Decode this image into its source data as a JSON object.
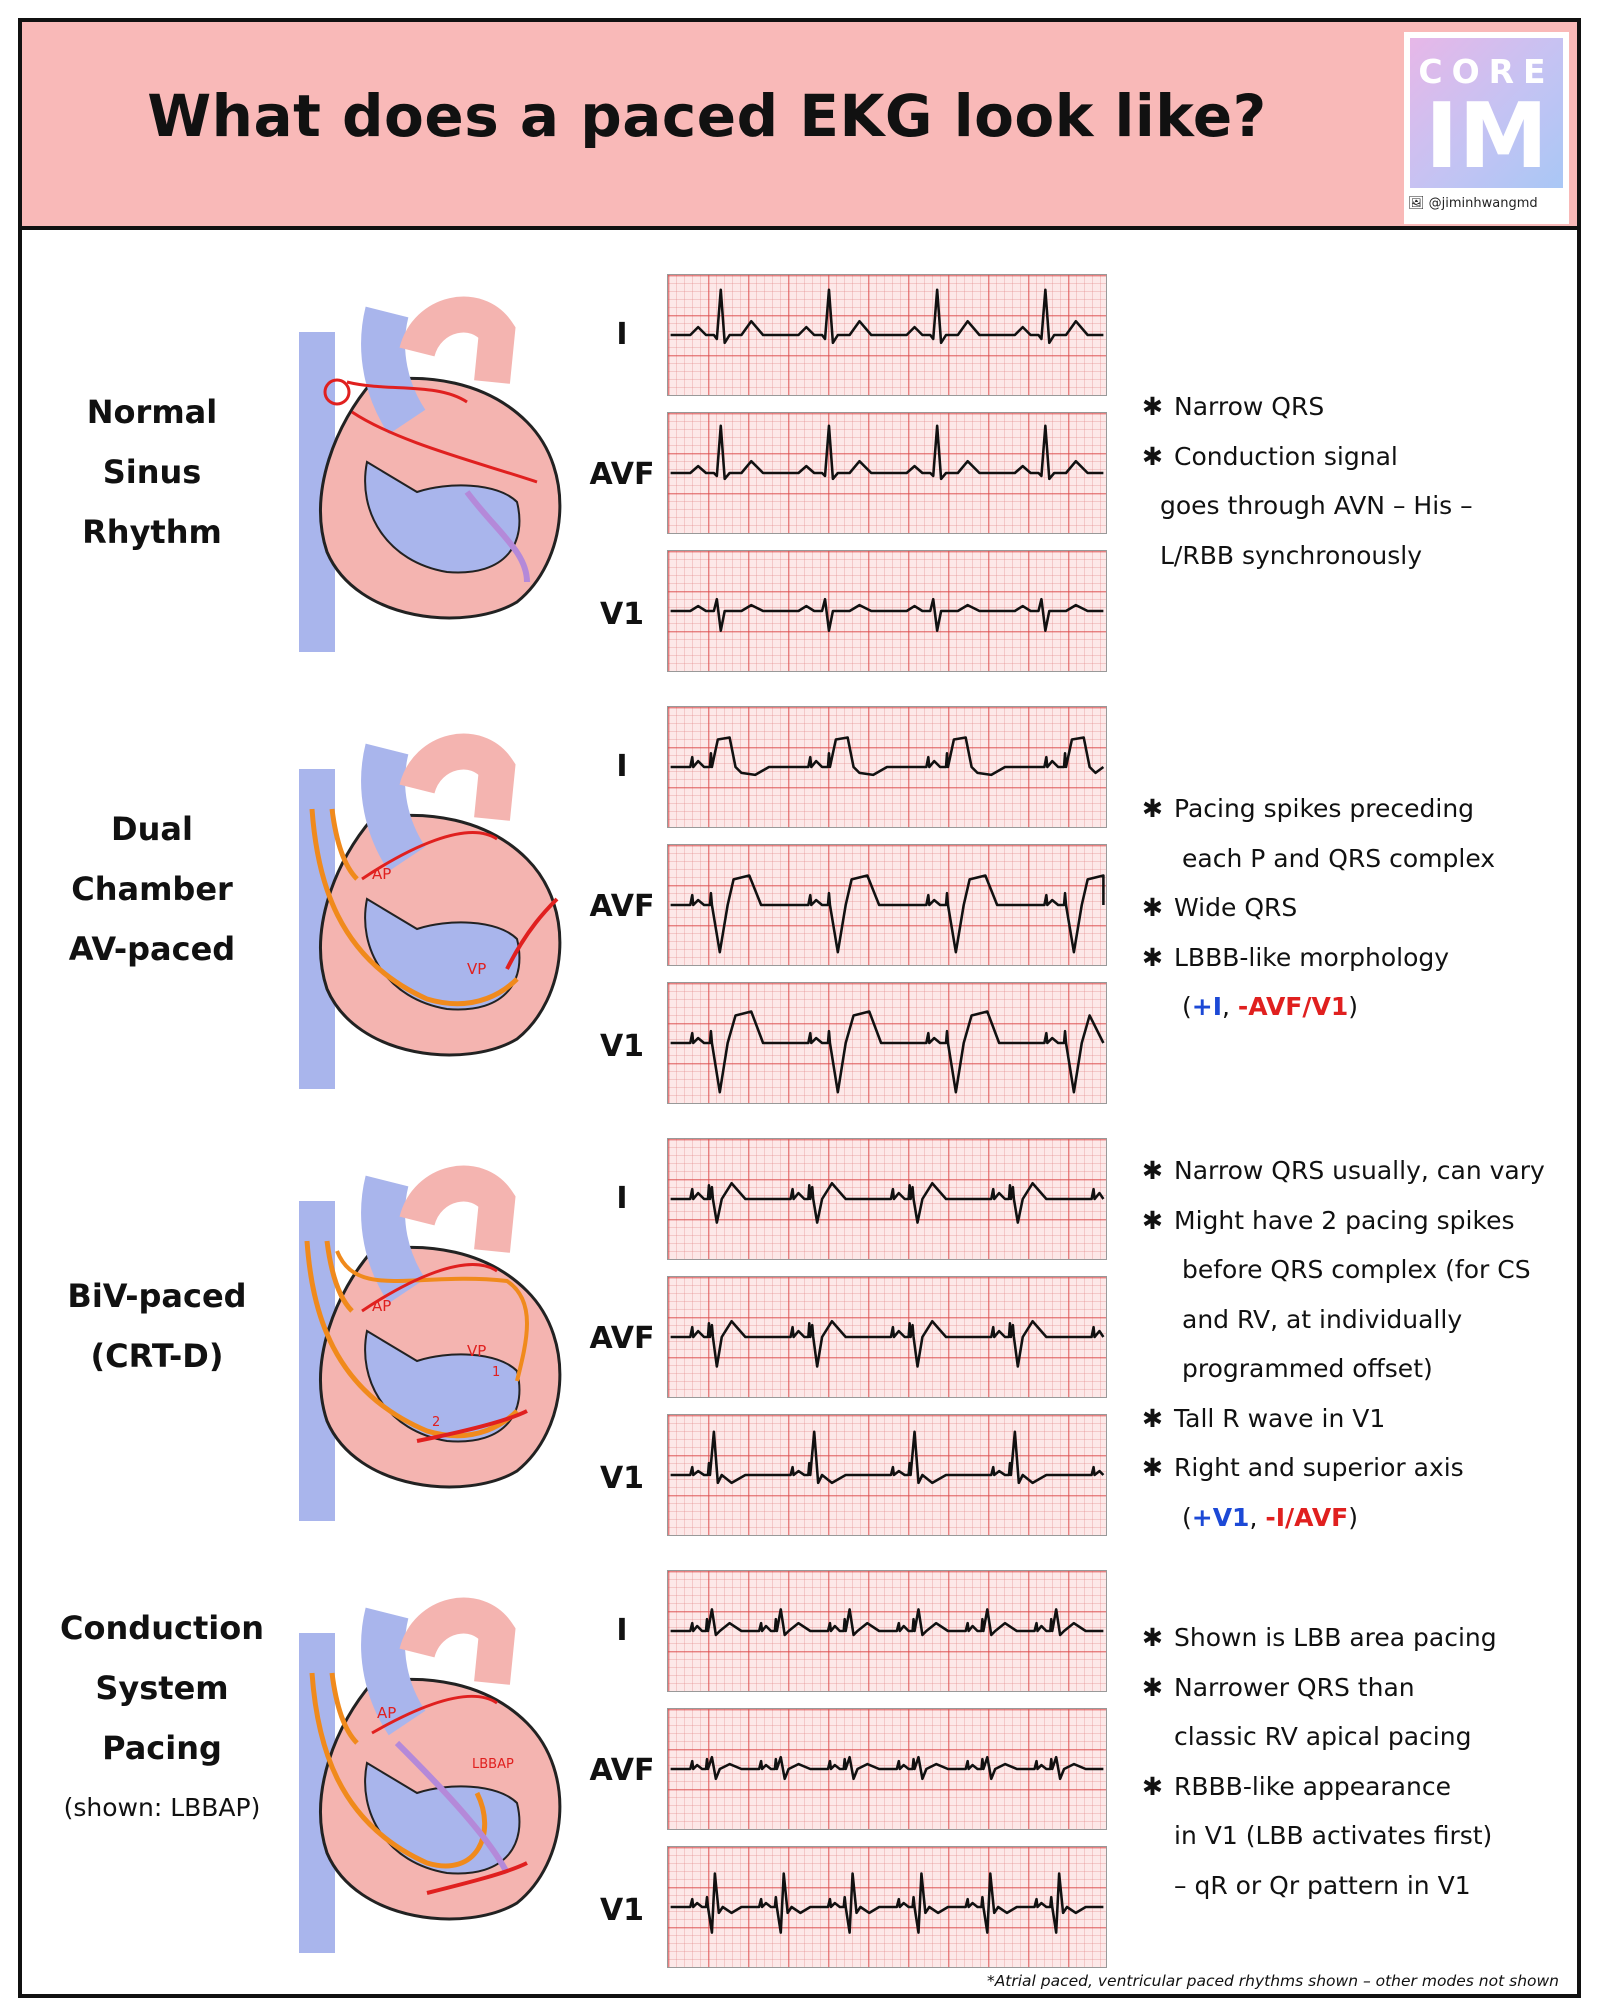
{
  "header": {
    "title": "What does a paced EKG look like?",
    "logo_top": "CORE",
    "logo_main": "IM",
    "handle": "@jiminhwangmd"
  },
  "leads": [
    "I",
    "AVF",
    "V1"
  ],
  "sections": [
    {
      "label_lines": [
        "Normal",
        "Sinus",
        "Rhythm"
      ],
      "label_sub": "",
      "heart_markers": [],
      "notes": [
        {
          "bullet": true,
          "text": "Narrow QRS"
        },
        {
          "bullet": true,
          "text": "Conduction signal"
        },
        {
          "bullet": false,
          "text": "goes through AVN – His –"
        },
        {
          "bullet": false,
          "text": "L/RBB synchronously"
        }
      ]
    },
    {
      "label_lines": [
        "Dual",
        "Chamber",
        "AV-paced"
      ],
      "label_sub": "",
      "heart_markers": [
        "AP",
        "VP"
      ],
      "notes": [
        {
          "bullet": true,
          "text": "Pacing spikes preceding"
        },
        {
          "bullet": false,
          "text": "each P and QRS complex"
        },
        {
          "bullet": true,
          "text": "Wide QRS"
        },
        {
          "bullet": true,
          "text": "LBBB-like morphology"
        }
      ],
      "axis_note": {
        "open": "(",
        "pos": "+I",
        "sep": ", ",
        "neg": "-AVF/V1",
        "close": ")"
      }
    },
    {
      "label_lines": [
        "BiV-paced",
        "(CRT-D)"
      ],
      "label_sub": "",
      "heart_markers": [
        "AP",
        "VP",
        "1",
        "2"
      ],
      "notes": [
        {
          "bullet": true,
          "text": "Narrow QRS usually, can vary"
        },
        {
          "bullet": true,
          "text": "Might have 2 pacing spikes"
        },
        {
          "bullet": false,
          "text": "before QRS complex (for CS"
        },
        {
          "bullet": false,
          "text": "and RV, at individually"
        },
        {
          "bullet": false,
          "text": "programmed offset)"
        },
        {
          "bullet": true,
          "text": "Tall R wave in V1"
        },
        {
          "bullet": true,
          "text": "Right and superior axis"
        }
      ],
      "axis_note": {
        "open": "(",
        "pos": "+V1",
        "sep": ", ",
        "neg": "-I/AVF",
        "close": ")"
      }
    },
    {
      "label_lines": [
        "Conduction",
        "System",
        "Pacing"
      ],
      "label_sub": "(shown: LBBAP)",
      "heart_markers": [
        "AP",
        "LBBAP"
      ],
      "notes": [
        {
          "bullet": true,
          "text": "Shown is LBB area pacing"
        },
        {
          "bullet": true,
          "text": "Narrower QRS than"
        },
        {
          "bullet": false,
          "text": "classic RV apical pacing"
        },
        {
          "bullet": true,
          "text": "RBBB-like appearance"
        },
        {
          "bullet": false,
          "text": "in V1 (LBB activates first)"
        },
        {
          "bullet": false,
          "text": "– qR or Qr pattern in V1"
        }
      ]
    }
  ],
  "footer": "*Atrial paced, ventricular paced rhythms shown – other modes not shown",
  "colors": {
    "header_bg": "#f9b9b8",
    "heart_pink": "#f4b4b0",
    "heart_blue": "#a9b5ec",
    "arrow_red": "#e0201f",
    "lead_orange": "#f08a1c",
    "purple": "#b489d9",
    "pos_blue": "#1c49d6",
    "neg_red": "#e0201f"
  }
}
